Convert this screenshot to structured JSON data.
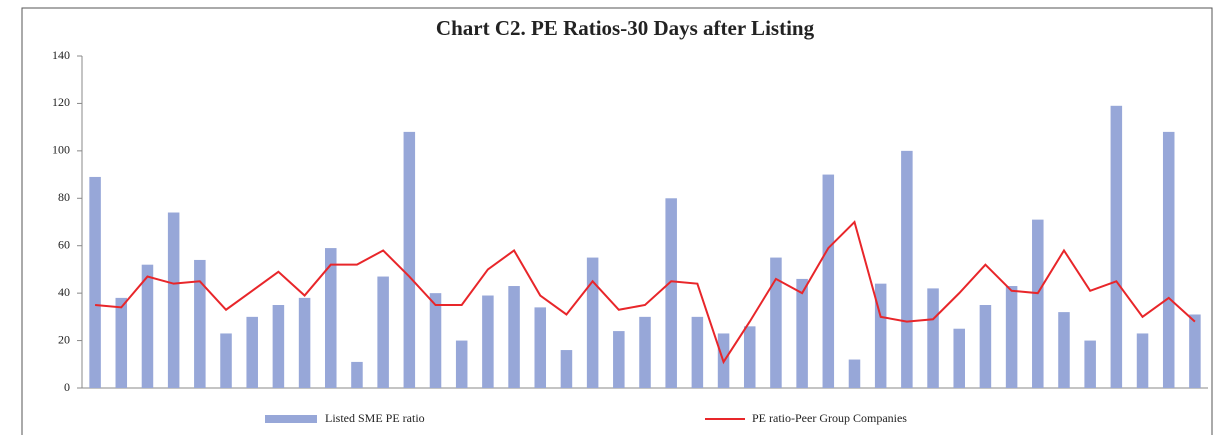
{
  "chart_data": {
    "type": "bar_line",
    "title": "Chart C2. PE Ratios-30 Days after Listing",
    "categories": [
      null,
      null,
      null,
      null,
      null,
      null,
      null,
      null,
      null,
      null,
      null,
      null,
      null,
      null,
      null,
      null,
      null,
      null,
      null,
      null,
      null,
      null,
      null,
      null,
      null,
      null,
      null,
      null,
      null,
      null,
      null,
      null,
      null,
      null,
      null,
      null,
      null,
      null,
      null,
      null,
      null,
      null,
      null
    ],
    "series": [
      {
        "name": "Listed SME PE ratio",
        "color": "#97a7d8",
        "kind": "bar",
        "values": [
          89,
          38,
          52,
          74,
          54,
          23,
          30,
          35,
          38,
          59,
          11,
          47,
          108,
          40,
          20,
          39,
          43,
          34,
          16,
          55,
          24,
          30,
          80,
          30,
          23,
          26,
          55,
          46,
          90,
          12,
          44,
          100,
          42,
          25,
          35,
          43,
          71,
          32,
          20,
          119,
          23,
          108,
          31
        ]
      },
      {
        "name": "PE ratio-Peer Group Companies",
        "color": "#e8262a",
        "kind": "line",
        "values": [
          35,
          34,
          47,
          44,
          45,
          33,
          41,
          49,
          39,
          52,
          52,
          58,
          47,
          35,
          35,
          50,
          58,
          39,
          31,
          45,
          33,
          35,
          45,
          44,
          11,
          28,
          46,
          40,
          59,
          70,
          30,
          28,
          29,
          40,
          52,
          41,
          40,
          58,
          41,
          45,
          30,
          38,
          28
        ]
      }
    ],
    "ylim": [
      0,
      140
    ],
    "yticks": [
      0,
      20,
      40,
      60,
      80,
      100,
      120,
      140
    ],
    "grid": false
  }
}
